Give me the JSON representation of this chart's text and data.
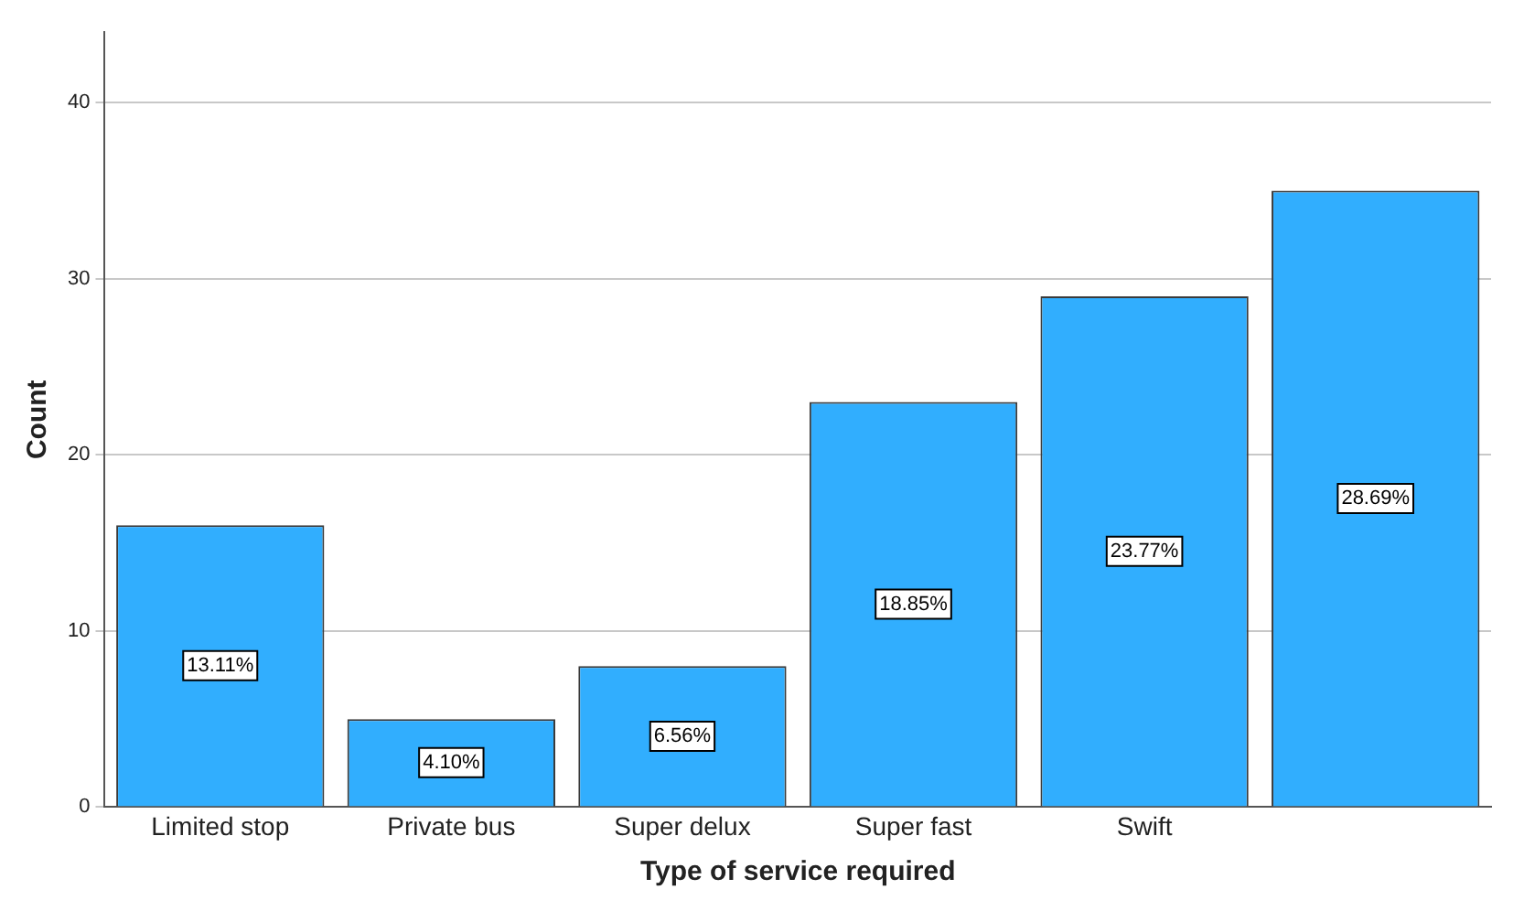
{
  "chart_data": {
    "type": "bar",
    "xlabel": "Type of service required",
    "ylabel": "Count",
    "categories": [
      "Limited stop",
      "Private bus",
      "Super delux",
      "Super fast",
      "Swift",
      null
    ],
    "values": [
      16,
      5,
      8,
      23,
      29,
      35
    ],
    "annotations": [
      "13.11%",
      "4.10%",
      "6.56%",
      "18.85%",
      "23.77%",
      "28.69%"
    ],
    "color": "#31aefe",
    "ylim": [
      0,
      44
    ],
    "yticks": [
      0,
      10,
      20,
      30,
      40
    ],
    "grid": "y",
    "legend": false
  }
}
